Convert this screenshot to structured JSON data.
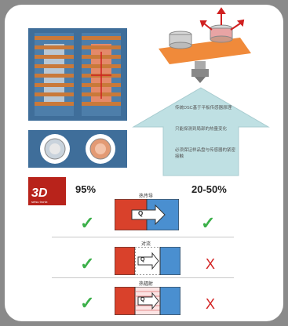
{
  "stats": {
    "left_pct": "95%",
    "right_pct": "20-50%"
  },
  "logo": {
    "mark": "3D",
    "sub": "setsu tronix"
  },
  "methods": [
    {
      "caption": "热传导",
      "left_mark": "✓",
      "right_mark": "✓"
    },
    {
      "caption": "对流",
      "left_mark": "✓",
      "right_mark": "X"
    },
    {
      "caption": "热辐射",
      "left_mark": "✓",
      "right_mark": "X"
    }
  ],
  "heat_label": "Q",
  "arrow_notes": [
    "传统DSC基于平板传感器原理",
    "只能探测到局部的热量变化",
    "必须保证样品盘与传感器的紧密接触"
  ],
  "colors": {
    "hot": "#d9412b",
    "cold": "#4a8fd0",
    "arrow": "#bfe0e3",
    "orange_plate": "#f08a3a",
    "check": "#3cb04a",
    "cross": "#d32222"
  }
}
